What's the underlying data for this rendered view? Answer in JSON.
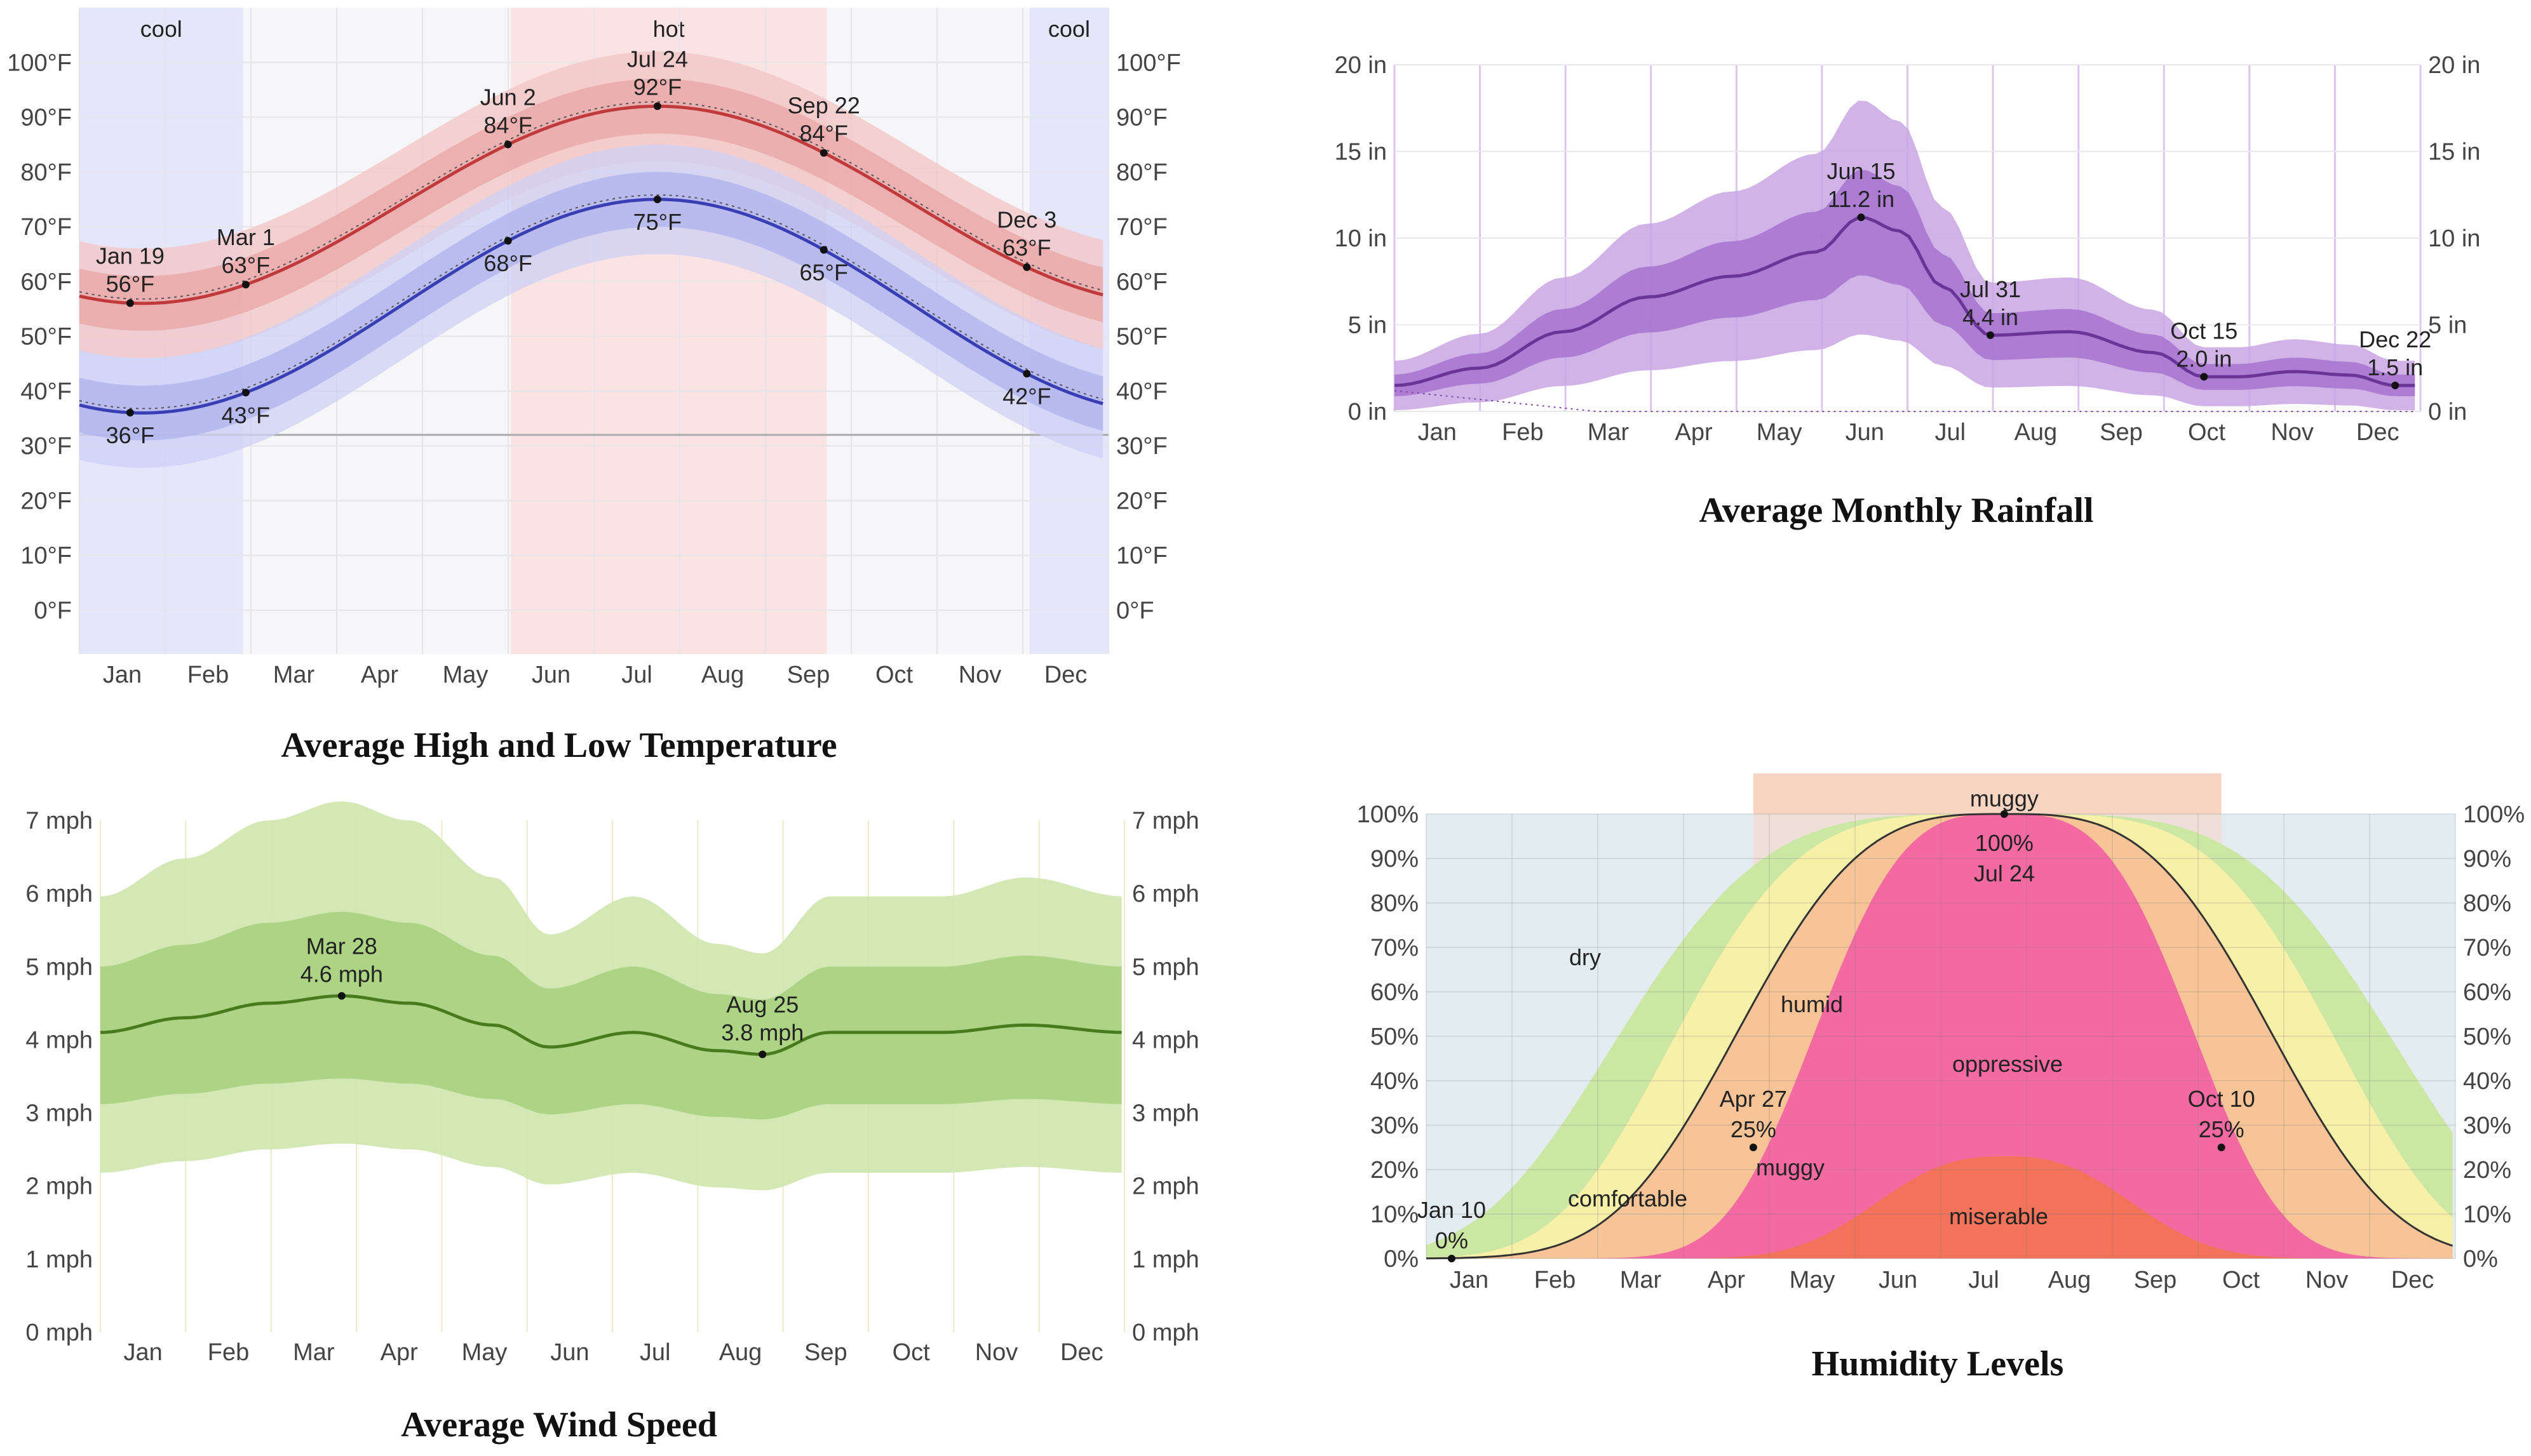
{
  "chart_data": [
    {
      "id": "temperature",
      "type": "area",
      "title": "Average High and Low Temperature",
      "x_labels": [
        "Jan",
        "Feb",
        "Mar",
        "Apr",
        "May",
        "Jun",
        "Jul",
        "Aug",
        "Sep",
        "Oct",
        "Nov",
        "Dec"
      ],
      "y_ticks": [
        "0°F",
        "10°F",
        "20°F",
        "30°F",
        "40°F",
        "50°F",
        "60°F",
        "70°F",
        "80°F",
        "90°F",
        "100°F"
      ],
      "ylim": [
        -8,
        110
      ],
      "bands": [
        {
          "label": "cool",
          "from_day": 0,
          "to_day": 58,
          "color": "#e6e6fb"
        },
        {
          "label": "hot",
          "from_day": 153,
          "to_day": 265,
          "color": "#fbe3e3"
        },
        {
          "label": "cool",
          "from_day": 337,
          "to_day": 365,
          "color": "#e6e6fb"
        }
      ],
      "series": [
        {
          "name": "Average High",
          "min": 56,
          "max": 92,
          "peak_day": 205,
          "color": "#c0393b",
          "fill": "#f3c4c4",
          "fill2": "#eaa7a7"
        },
        {
          "name": "Average Low",
          "min": 36,
          "max": 75,
          "peak_day": 205,
          "color": "#3a3eb5",
          "fill": "#cdd0f5",
          "fill2": "#b0b4ee"
        }
      ],
      "freezing_line": 32,
      "annotations": [
        {
          "day": 18,
          "series": 0,
          "text": [
            "Jan 19",
            "56°F"
          ],
          "pos": "above"
        },
        {
          "day": 59,
          "series": 0,
          "text": [
            "Mar 1",
            "63°F"
          ],
          "pos": "above"
        },
        {
          "day": 152,
          "series": 0,
          "text": [
            "Jun 2",
            "84°F"
          ],
          "pos": "above"
        },
        {
          "day": 205,
          "series": 0,
          "text": [
            "Jul 24",
            "92°F"
          ],
          "pos": "above"
        },
        {
          "day": 264,
          "series": 0,
          "text": [
            "Sep 22",
            "84°F"
          ],
          "pos": "above"
        },
        {
          "day": 336,
          "series": 0,
          "text": [
            "Dec 3",
            "63°F"
          ],
          "pos": "above"
        },
        {
          "day": 18,
          "series": 1,
          "text": [
            "36°F"
          ],
          "pos": "below"
        },
        {
          "day": 59,
          "series": 1,
          "text": [
            "43°F"
          ],
          "pos": "below"
        },
        {
          "day": 152,
          "series": 1,
          "text": [
            "68°F"
          ],
          "pos": "below"
        },
        {
          "day": 205,
          "series": 1,
          "text": [
            "75°F"
          ],
          "pos": "below"
        },
        {
          "day": 264,
          "series": 1,
          "text": [
            "65°F"
          ],
          "pos": "below"
        },
        {
          "day": 336,
          "series": 1,
          "text": [
            "42°F"
          ],
          "pos": "below"
        }
      ]
    },
    {
      "id": "rainfall",
      "type": "area",
      "title": "Average Monthly Rainfall",
      "x_labels": [
        "Jan",
        "Feb",
        "Mar",
        "Apr",
        "May",
        "Jun",
        "Jul",
        "Aug",
        "Sep",
        "Oct",
        "Nov",
        "Dec"
      ],
      "y_ticks": [
        "0 in",
        "5 in",
        "10 in",
        "15 in",
        "20 in"
      ],
      "ylim": [
        0,
        20
      ],
      "series": [
        {
          "name": "Rainfall",
          "days": [
            0,
            30,
            60,
            90,
            120,
            150,
            166,
            180,
            195,
            212,
            240,
            270,
            288,
            300,
            320,
            340,
            356,
            365
          ],
          "values": [
            1.5,
            2.5,
            4.6,
            6.6,
            7.8,
            9.2,
            11.2,
            10.4,
            7.2,
            4.4,
            4.6,
            3.4,
            2.0,
            2.0,
            2.3,
            2.1,
            1.5,
            1.5
          ],
          "color": "#6a3596"
        }
      ],
      "annotations": [
        {
          "day": 166,
          "text": [
            "Jun 15",
            "11.2 in"
          ]
        },
        {
          "day": 212,
          "text": [
            "Jul 31",
            "4.4 in"
          ]
        },
        {
          "day": 288,
          "text": [
            "Oct 15",
            "2.0 in"
          ]
        },
        {
          "day": 356,
          "text": [
            "Dec 22",
            "1.5 in"
          ]
        }
      ]
    },
    {
      "id": "wind",
      "type": "area",
      "title": "Average Wind Speed",
      "x_labels": [
        "Jan",
        "Feb",
        "Mar",
        "Apr",
        "May",
        "Jun",
        "Jul",
        "Aug",
        "Sep",
        "Oct",
        "Nov",
        "Dec"
      ],
      "y_ticks": [
        "0 mph",
        "1 mph",
        "2 mph",
        "3 mph",
        "4 mph",
        "5 mph",
        "6 mph",
        "7 mph"
      ],
      "ylim": [
        0,
        7
      ],
      "series": [
        {
          "name": "Average Wind Speed",
          "days": [
            0,
            30,
            60,
            86,
            110,
            140,
            160,
            190,
            220,
            236,
            260,
            300,
            330,
            365
          ],
          "values": [
            4.1,
            4.3,
            4.5,
            4.6,
            4.5,
            4.2,
            3.9,
            4.1,
            3.85,
            3.8,
            4.1,
            4.1,
            4.2,
            4.1
          ],
          "color": "#4a7a1e"
        }
      ],
      "annotations": [
        {
          "day": 86,
          "text": [
            "Mar 28",
            "4.6 mph"
          ]
        },
        {
          "day": 236,
          "text": [
            "Aug 25",
            "3.8 mph"
          ]
        }
      ]
    },
    {
      "id": "humidity",
      "type": "area",
      "title": "Humidity Levels",
      "x_labels": [
        "Jan",
        "Feb",
        "Mar",
        "Apr",
        "May",
        "Jun",
        "Jul",
        "Aug",
        "Sep",
        "Oct",
        "Nov",
        "Dec"
      ],
      "y_ticks": [
        "0%",
        "10%",
        "20%",
        "30%",
        "40%",
        "50%",
        "60%",
        "70%",
        "80%",
        "90%",
        "100%"
      ],
      "ylim": [
        0,
        100
      ],
      "band": {
        "label": "muggy",
        "from_day": 116,
        "to_day": 282,
        "color": "#f8d4c2"
      },
      "categories": [
        {
          "name": "dry",
          "color": "#e3edf1"
        },
        {
          "name": "comfortable",
          "color": "#cce6a4"
        },
        {
          "name": "humid",
          "color": "#f6f0a8"
        },
        {
          "name": "muggy",
          "color": "#f7c497"
        },
        {
          "name": "oppressive",
          "color": "#f36aa3"
        },
        {
          "name": "miserable",
          "color": "#f2735a"
        }
      ],
      "annotations": [
        {
          "day": 9,
          "value": 0,
          "text": [
            "Jan 10",
            "0%"
          ],
          "pos": "above"
        },
        {
          "day": 116,
          "value": 25,
          "text": [
            "Apr 27",
            "25%"
          ],
          "pos": "above"
        },
        {
          "day": 205,
          "value": 100,
          "text": [
            "100%",
            "Jul 24"
          ],
          "pos": "below"
        },
        {
          "day": 282,
          "value": 25,
          "text": [
            "Oct 10",
            "25%"
          ],
          "pos": "above"
        }
      ],
      "region_labels": [
        "dry",
        "humid",
        "comfortable",
        "muggy",
        "oppressive",
        "miserable"
      ]
    }
  ]
}
